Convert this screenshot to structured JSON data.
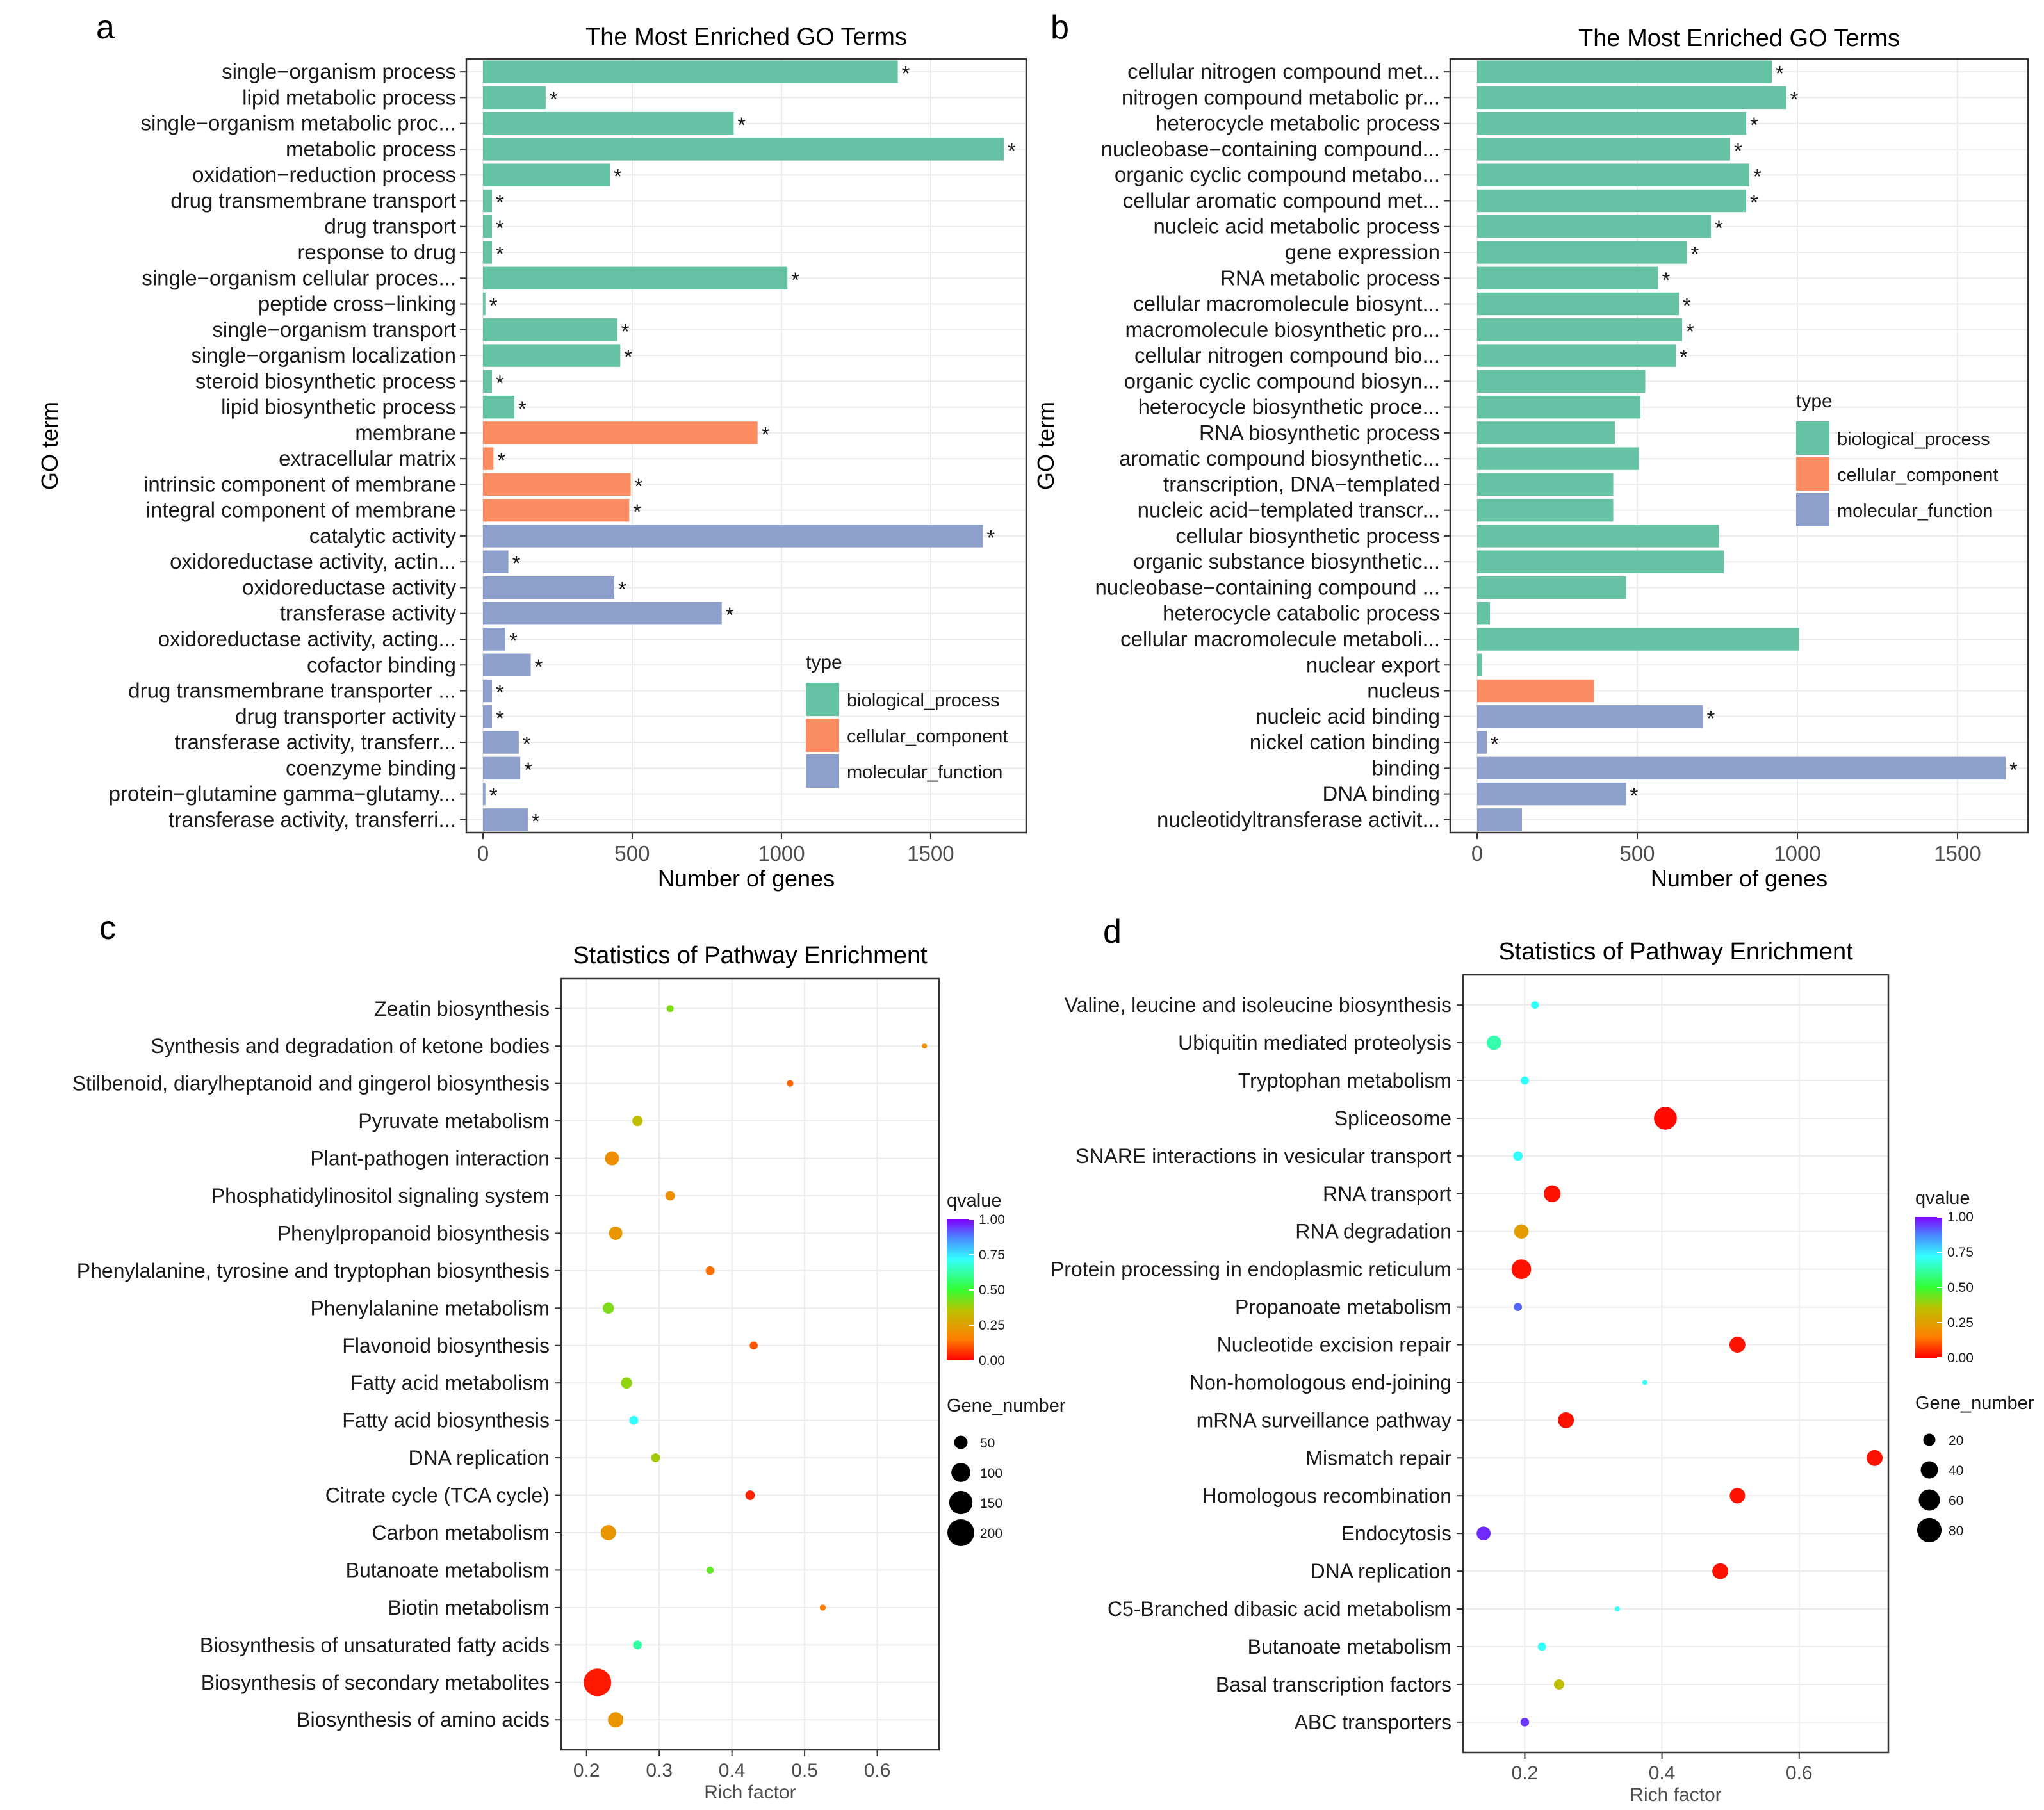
{
  "chart_data": [
    {
      "panel": "a",
      "type": "bar",
      "title": "The Most Enriched GO Terms",
      "xlabel": "Number of genes",
      "ylabel": "GO term",
      "xlim": [
        0,
        1820
      ],
      "xticks": [
        0,
        500,
        1000,
        1500
      ],
      "legend_title": "type",
      "legend": [
        "biological_process",
        "cellular_component",
        "molecular_function"
      ],
      "colors": {
        "biological_process": "#66c2a5",
        "cellular_component": "#fc8d62",
        "molecular_function": "#8da0cb"
      },
      "items": [
        {
          "term": "single−organism process",
          "value": 1390,
          "type": "biological_process",
          "sig": "*"
        },
        {
          "term": "lipid metabolic process",
          "value": 210,
          "type": "biological_process",
          "sig": "*"
        },
        {
          "term": "single−organism metabolic proc...",
          "value": 840,
          "type": "biological_process",
          "sig": "*"
        },
        {
          "term": "metabolic process",
          "value": 1745,
          "type": "biological_process",
          "sig": "*"
        },
        {
          "term": "oxidation−reduction process",
          "value": 425,
          "type": "biological_process",
          "sig": "*"
        },
        {
          "term": "drug transmembrane transport",
          "value": 30,
          "type": "biological_process",
          "sig": "*"
        },
        {
          "term": "drug transport",
          "value": 30,
          "type": "biological_process",
          "sig": "*"
        },
        {
          "term": "response to drug",
          "value": 30,
          "type": "biological_process",
          "sig": "*"
        },
        {
          "term": "single−organism cellular proces...",
          "value": 1020,
          "type": "biological_process",
          "sig": "*"
        },
        {
          "term": "peptide cross−linking",
          "value": 8,
          "type": "biological_process",
          "sig": "*"
        },
        {
          "term": "single−organism transport",
          "value": 450,
          "type": "biological_process",
          "sig": "*"
        },
        {
          "term": "single−organism localization",
          "value": 460,
          "type": "biological_process",
          "sig": "*"
        },
        {
          "term": "steroid biosynthetic process",
          "value": 30,
          "type": "biological_process",
          "sig": "*"
        },
        {
          "term": "lipid biosynthetic process",
          "value": 105,
          "type": "biological_process",
          "sig": "*"
        },
        {
          "term": "membrane",
          "value": 920,
          "type": "cellular_component",
          "sig": "*"
        },
        {
          "term": "extracellular matrix",
          "value": 35,
          "type": "cellular_component",
          "sig": "*"
        },
        {
          "term": "intrinsic component of membrane",
          "value": 495,
          "type": "cellular_component",
          "sig": "*"
        },
        {
          "term": "integral component of membrane",
          "value": 490,
          "type": "cellular_component",
          "sig": "*"
        },
        {
          "term": "catalytic activity",
          "value": 1675,
          "type": "molecular_function",
          "sig": "*"
        },
        {
          "term": "oxidoreductase activity, actin...",
          "value": 85,
          "type": "molecular_function",
          "sig": "*"
        },
        {
          "term": "oxidoreductase activity",
          "value": 440,
          "type": "molecular_function",
          "sig": "*"
        },
        {
          "term": "transferase activity",
          "value": 800,
          "type": "molecular_function",
          "sig": "*"
        },
        {
          "term": "oxidoreductase activity, acting...",
          "value": 75,
          "type": "molecular_function",
          "sig": "*"
        },
        {
          "term": "cofactor binding",
          "value": 160,
          "type": "molecular_function",
          "sig": "*"
        },
        {
          "term": "drug transmembrane transporter ...",
          "value": 30,
          "type": "molecular_function",
          "sig": "*"
        },
        {
          "term": "drug transporter activity",
          "value": 30,
          "type": "molecular_function",
          "sig": "*"
        },
        {
          "term": "transferase activity, transferr...",
          "value": 120,
          "type": "molecular_function",
          "sig": "*"
        },
        {
          "term": "coenzyme binding",
          "value": 125,
          "type": "molecular_function",
          "sig": "*"
        },
        {
          "term": "protein−glutamine gamma−glutamy...",
          "value": 8,
          "type": "molecular_function",
          "sig": "*"
        },
        {
          "term": "transferase activity, transferri...",
          "value": 150,
          "type": "molecular_function",
          "sig": "*"
        }
      ]
    },
    {
      "panel": "b",
      "type": "bar",
      "title": "The Most Enriched GO Terms",
      "xlabel": "Number of genes",
      "ylabel": "GO term",
      "xlim": [
        0,
        1720
      ],
      "xticks": [
        0,
        500,
        1000,
        1500
      ],
      "legend_title": "type",
      "legend": [
        "biological_process",
        "cellular_component",
        "molecular_function"
      ],
      "colors": {
        "biological_process": "#66c2a5",
        "cellular_component": "#fc8d62",
        "molecular_function": "#8da0cb"
      },
      "items": [
        {
          "term": "cellular nitrogen compound met...",
          "value": 920,
          "type": "biological_process",
          "sig": "*"
        },
        {
          "term": "nitrogen compound metabolic pr...",
          "value": 965,
          "type": "biological_process",
          "sig": "*"
        },
        {
          "term": "heterocycle metabolic process",
          "value": 840,
          "type": "biological_process",
          "sig": "*"
        },
        {
          "term": "nucleobase−containing compound...",
          "value": 790,
          "type": "biological_process",
          "sig": "*"
        },
        {
          "term": "organic cyclic compound metabo...",
          "value": 850,
          "type": "biological_process",
          "sig": "*"
        },
        {
          "term": "cellular aromatic compound met...",
          "value": 840,
          "type": "biological_process",
          "sig": "*"
        },
        {
          "term": "nucleic acid metabolic process",
          "value": 730,
          "type": "biological_process",
          "sig": "*"
        },
        {
          "term": "gene expression",
          "value": 655,
          "type": "biological_process",
          "sig": "*"
        },
        {
          "term": "RNA metabolic process",
          "value": 565,
          "type": "biological_process",
          "sig": "*"
        },
        {
          "term": "cellular macromolecule biosynt...",
          "value": 630,
          "type": "biological_process",
          "sig": "*"
        },
        {
          "term": "macromolecule biosynthetic pro...",
          "value": 640,
          "type": "biological_process",
          "sig": "*"
        },
        {
          "term": "cellular nitrogen compound bio...",
          "value": 620,
          "type": "biological_process",
          "sig": "*"
        },
        {
          "term": "organic cyclic compound biosyn...",
          "value": 525,
          "type": "biological_process",
          "sig": ""
        },
        {
          "term": "heterocycle biosynthetic proce...",
          "value": 510,
          "type": "biological_process",
          "sig": ""
        },
        {
          "term": "RNA biosynthetic process",
          "value": 430,
          "type": "biological_process",
          "sig": ""
        },
        {
          "term": "aromatic compound biosynthetic...",
          "value": 505,
          "type": "biological_process",
          "sig": ""
        },
        {
          "term": "transcription, DNA−templated",
          "value": 425,
          "type": "biological_process",
          "sig": ""
        },
        {
          "term": "nucleic acid−templated transcr...",
          "value": 425,
          "type": "biological_process",
          "sig": ""
        },
        {
          "term": "cellular biosynthetic process",
          "value": 755,
          "type": "biological_process",
          "sig": ""
        },
        {
          "term": "organic substance biosynthetic...",
          "value": 770,
          "type": "biological_process",
          "sig": ""
        },
        {
          "term": "nucleobase−containing compound ...",
          "value": 465,
          "type": "biological_process",
          "sig": ""
        },
        {
          "term": "heterocycle catabolic process",
          "value": 40,
          "type": "biological_process",
          "sig": ""
        },
        {
          "term": "cellular macromolecule metaboli...",
          "value": 1005,
          "type": "biological_process",
          "sig": ""
        },
        {
          "term": "nuclear export",
          "value": 15,
          "type": "biological_process",
          "sig": ""
        },
        {
          "term": "nucleus",
          "value": 365,
          "type": "cellular_component",
          "sig": ""
        },
        {
          "term": "nucleic acid binding",
          "value": 705,
          "type": "molecular_function",
          "sig": "*"
        },
        {
          "term": "nickel cation binding",
          "value": 30,
          "type": "molecular_function",
          "sig": "*"
        },
        {
          "term": "binding",
          "value": 1650,
          "type": "molecular_function",
          "sig": "*"
        },
        {
          "term": "DNA binding",
          "value": 465,
          "type": "molecular_function",
          "sig": "*"
        },
        {
          "term": "nucleotidyltransferase activit...",
          "value": 140,
          "type": "molecular_function",
          "sig": ""
        }
      ]
    },
    {
      "panel": "c",
      "type": "scatter",
      "title": "Statistics of Pathway Enrichment",
      "xlabel": "Rich factor",
      "ylabel": "",
      "xlim": [
        0.165,
        0.685
      ],
      "xticks": [
        0.2,
        0.3,
        0.4,
        0.5,
        0.6
      ],
      "color_legend": {
        "title": "qvalue",
        "ticks": [
          "1.00",
          "0.75",
          "0.50",
          "0.25",
          "0.00"
        ]
      },
      "size_legend": {
        "title": "Gene_number",
        "values": [
          50,
          100,
          150,
          200
        ],
        "size_max": 220
      },
      "points": [
        {
          "pathway": "Zeatin biosynthesis",
          "rich": 0.315,
          "genes": 14,
          "qvalue": 0.42
        },
        {
          "pathway": "Synthesis and degradation of ketone bodies",
          "rich": 0.665,
          "genes": 4,
          "qvalue": 0.2
        },
        {
          "pathway": "Stilbenoid, diarylheptanoid and gingerol biosynthesis",
          "rich": 0.48,
          "genes": 12,
          "qvalue": 0.12
        },
        {
          "pathway": "Pyruvate metabolism",
          "rich": 0.27,
          "genes": 30,
          "qvalue": 0.35
        },
        {
          "pathway": "Plant-pathogen interaction",
          "rich": 0.235,
          "genes": 55,
          "qvalue": 0.2
        },
        {
          "pathway": "Phosphatidylinositol signaling system",
          "rich": 0.315,
          "genes": 25,
          "qvalue": 0.2
        },
        {
          "pathway": "Phenylpropanoid biosynthesis",
          "rich": 0.24,
          "genes": 50,
          "qvalue": 0.22
        },
        {
          "pathway": "Phenylalanine, tyrosine and tryptophan biosynthesis",
          "rich": 0.37,
          "genes": 22,
          "qvalue": 0.13
        },
        {
          "pathway": "Phenylalanine metabolism",
          "rich": 0.23,
          "genes": 35,
          "qvalue": 0.42
        },
        {
          "pathway": "Flavonoid biosynthesis",
          "rich": 0.43,
          "genes": 18,
          "qvalue": 0.1
        },
        {
          "pathway": "Fatty acid metabolism",
          "rich": 0.255,
          "genes": 35,
          "qvalue": 0.4
        },
        {
          "pathway": "Fatty acid biosynthesis",
          "rich": 0.265,
          "genes": 22,
          "qvalue": 0.72
        },
        {
          "pathway": "DNA replication",
          "rich": 0.295,
          "genes": 22,
          "qvalue": 0.38
        },
        {
          "pathway": "Citrate cycle (TCA cycle)",
          "rich": 0.425,
          "genes": 25,
          "qvalue": 0.04
        },
        {
          "pathway": "Carbon metabolism",
          "rich": 0.23,
          "genes": 65,
          "qvalue": 0.22
        },
        {
          "pathway": "Butanoate metabolism",
          "rich": 0.37,
          "genes": 14,
          "qvalue": 0.45
        },
        {
          "pathway": "Biotin metabolism",
          "rich": 0.525,
          "genes": 10,
          "qvalue": 0.15
        },
        {
          "pathway": "Biosynthesis of unsaturated fatty acids",
          "rich": 0.27,
          "genes": 22,
          "qvalue": 0.62
        },
        {
          "pathway": "Biosynthesis of secondary metabolites",
          "rich": 0.215,
          "genes": 210,
          "qvalue": 0.03
        },
        {
          "pathway": "Biosynthesis of amino acids",
          "rich": 0.24,
          "genes": 65,
          "qvalue": 0.22
        }
      ]
    },
    {
      "panel": "d",
      "type": "scatter",
      "title": "Statistics of Pathway Enrichment",
      "xlabel": "Rich factor",
      "ylabel": "",
      "xlim": [
        0.11,
        0.73
      ],
      "xticks": [
        0.2,
        0.4,
        0.6
      ],
      "color_legend": {
        "title": "qvalue",
        "ticks": [
          "1.00",
          "0.75",
          "0.50",
          "0.25",
          "0.00"
        ]
      },
      "size_legend": {
        "title": "Gene_number",
        "values": [
          20,
          40,
          60,
          80
        ],
        "size_max": 88
      },
      "points": [
        {
          "pathway": "Valine, leucine and isoleucine biosynthesis",
          "rich": 0.215,
          "genes": 8,
          "qvalue": 0.72
        },
        {
          "pathway": "Ubiquitin mediated proteolysis",
          "rich": 0.155,
          "genes": 28,
          "qvalue": 0.63
        },
        {
          "pathway": "Tryptophan metabolism",
          "rich": 0.2,
          "genes": 9,
          "qvalue": 0.72
        },
        {
          "pathway": "Spliceosome",
          "rich": 0.405,
          "genes": 70,
          "qvalue": 0.01
        },
        {
          "pathway": "SNARE interactions in vesicular transport",
          "rich": 0.19,
          "genes": 12,
          "qvalue": 0.72
        },
        {
          "pathway": "RNA transport",
          "rich": 0.24,
          "genes": 38,
          "qvalue": 0.02
        },
        {
          "pathway": "RNA degradation",
          "rich": 0.195,
          "genes": 28,
          "qvalue": 0.24
        },
        {
          "pathway": "Protein processing in endoplasmic reticulum",
          "rich": 0.195,
          "genes": 52,
          "qvalue": 0.02
        },
        {
          "pathway": "Propanoate metabolism",
          "rich": 0.19,
          "genes": 9,
          "qvalue": 0.9
        },
        {
          "pathway": "Nucleotide excision repair",
          "rich": 0.51,
          "genes": 34,
          "qvalue": 0.02
        },
        {
          "pathway": "Non-homologous end-joining",
          "rich": 0.375,
          "genes": 3,
          "qvalue": 0.72
        },
        {
          "pathway": "mRNA surveillance pathway",
          "rich": 0.26,
          "genes": 34,
          "qvalue": 0.02
        },
        {
          "pathway": "Mismatch repair",
          "rich": 0.71,
          "genes": 34,
          "qvalue": 0.02
        },
        {
          "pathway": "Homologous recombination",
          "rich": 0.51,
          "genes": 32,
          "qvalue": 0.02
        },
        {
          "pathway": "Endocytosis",
          "rich": 0.14,
          "genes": 26,
          "qvalue": 0.96
        },
        {
          "pathway": "DNA replication",
          "rich": 0.485,
          "genes": 34,
          "qvalue": 0.02
        },
        {
          "pathway": "C5-Branched dibasic acid metabolism",
          "rich": 0.335,
          "genes": 3,
          "qvalue": 0.72
        },
        {
          "pathway": "Butanoate metabolism",
          "rich": 0.225,
          "genes": 9,
          "qvalue": 0.72
        },
        {
          "pathway": "Basal transcription factors",
          "rich": 0.25,
          "genes": 14,
          "qvalue": 0.35
        },
        {
          "pathway": "ABC transporters",
          "rich": 0.2,
          "genes": 10,
          "qvalue": 0.95
        }
      ]
    }
  ]
}
